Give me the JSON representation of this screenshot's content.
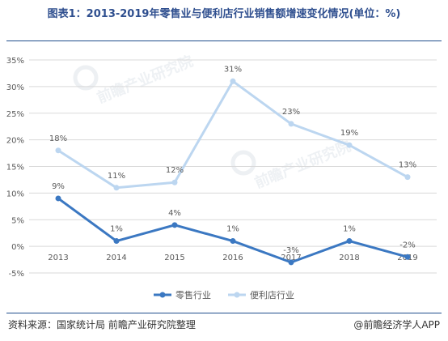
{
  "title": "图表1：2013-2019年零售业与便利店行业销售额增速变化情况(单位：%)",
  "source": "资料来源：国家统计局 前瞻产业研究院整理",
  "credit": "@前瞻经济学人APP",
  "watermark": "前瞻产业研究院",
  "chart_data": {
    "type": "line",
    "x": [
      "2013",
      "2014",
      "2015",
      "2016",
      "2017",
      "2018",
      "2019"
    ],
    "y_ticks": [
      "35%",
      "30%",
      "25%",
      "20%",
      "15%",
      "10%",
      "5%",
      "0%",
      "-5%"
    ],
    "ylim": [
      -5,
      35
    ],
    "grid": true,
    "legend_position": "bottom",
    "series": [
      {
        "name": "零售行业",
        "color": "#3b78c2",
        "values": [
          9,
          1,
          4,
          1,
          -3,
          1,
          -2
        ],
        "labels": [
          "9%",
          "1%",
          "4%",
          "1%",
          "-3%",
          "1%",
          "-2%"
        ]
      },
      {
        "name": "便利店行业",
        "color": "#bcd6f0",
        "values": [
          18,
          11,
          12,
          31,
          23,
          19,
          13
        ],
        "labels": [
          "18%",
          "11%",
          "12%",
          "31%",
          "23%",
          "19%",
          "13%"
        ]
      }
    ]
  }
}
